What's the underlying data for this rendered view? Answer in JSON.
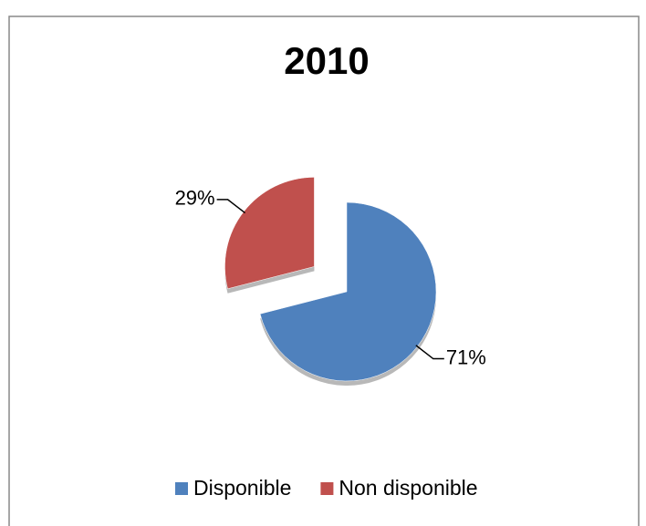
{
  "chart_data": {
    "type": "pie",
    "title": "2010",
    "categories": [
      "Disponible",
      "Non disponible"
    ],
    "values": [
      71,
      29
    ],
    "value_labels": [
      "71%",
      "29%"
    ],
    "colors": [
      "#4f81bd",
      "#c0504d"
    ],
    "legend": "bottom"
  }
}
